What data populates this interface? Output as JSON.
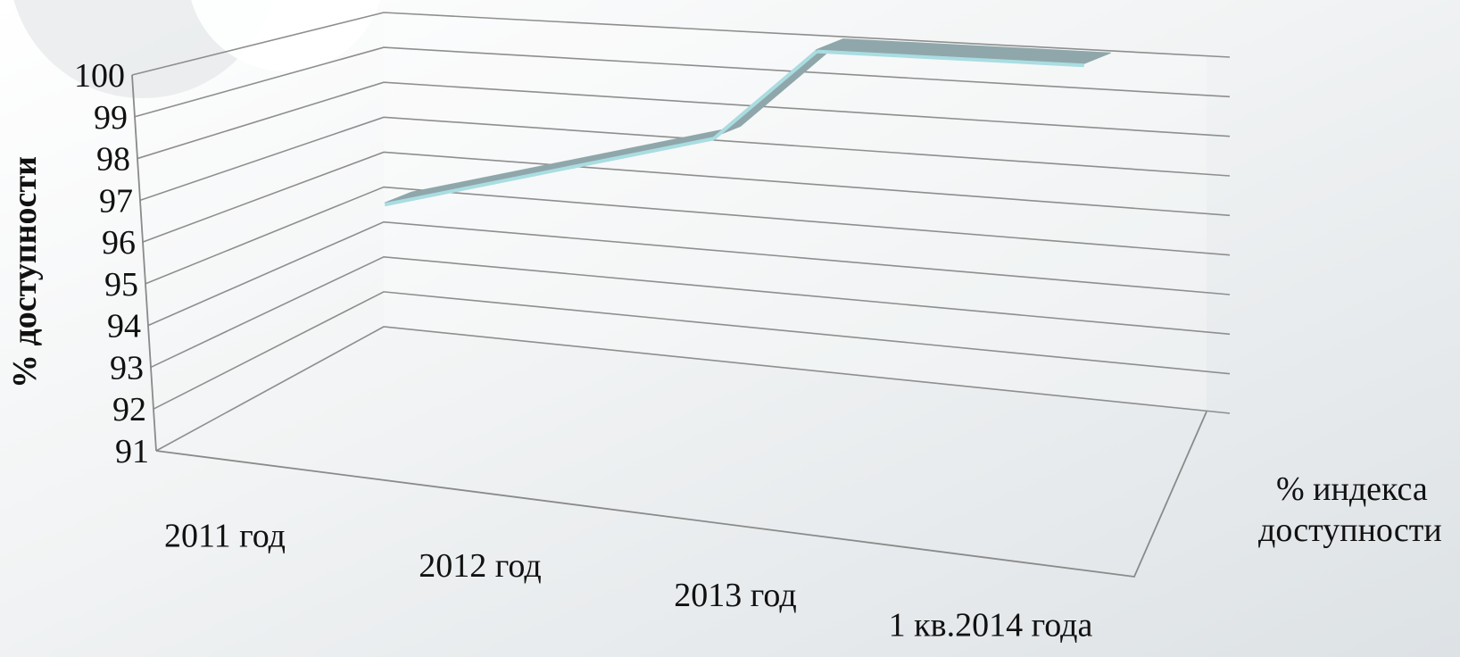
{
  "chart_data": {
    "type": "line",
    "view": "3d",
    "ylabel": "% доступности",
    "yticks": [
      "91",
      "92",
      "93",
      "94",
      "95",
      "96",
      "97",
      "98",
      "99",
      "100"
    ],
    "ylim": [
      91,
      100
    ],
    "categories": [
      "2011 год",
      "2012 год",
      "2013 год",
      "1 кв.2014 года"
    ],
    "series": [
      {
        "name": "% индекса доступности",
        "values": [
          95,
          97.5,
          100,
          100
        ]
      }
    ],
    "grid": true,
    "colors": {
      "ribbon_top": "#8fa7aa",
      "ribbon_edge": "#a9dde2",
      "gridline": "#8e8e8e",
      "background_light": "#ffffff",
      "background_dark": "#dfe4e7"
    }
  }
}
